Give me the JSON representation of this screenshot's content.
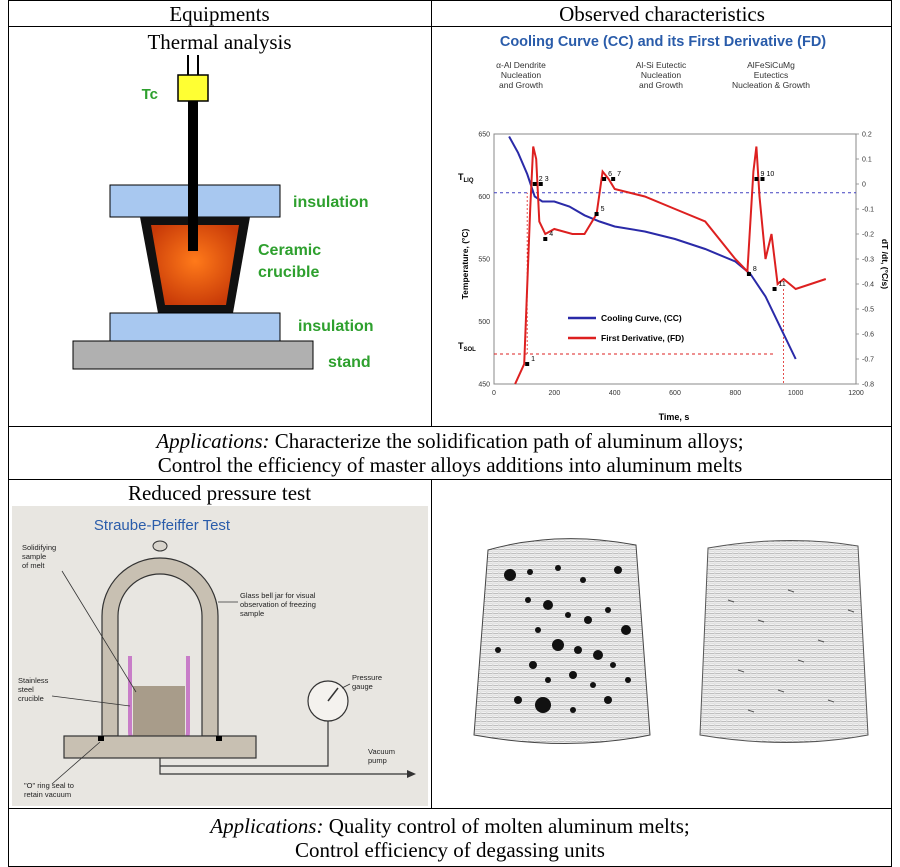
{
  "header": {
    "col1": "Equipments",
    "col2": "Observed characteristics"
  },
  "thermal": {
    "title": "Thermal analysis",
    "tc_label": "Tc",
    "insulation_top": "insulation",
    "crucible_line1": "Ceramic",
    "crucible_line2": "crucible",
    "insulation_bottom": "insulation",
    "stand": "stand"
  },
  "cooling_chart": {
    "title": "Cooling Curve (CC) and its First Derivative (FD)",
    "annotations": [
      {
        "line1": "α-Al Dendrite",
        "line2": "Nucleation",
        "line3": "and Growth"
      },
      {
        "line1": "Al-Si Eutectic",
        "line2": "Nucleation",
        "line3": "and Growth"
      },
      {
        "line1": "AlFeSiCuMg",
        "line2": "Eutectics",
        "line3": "Nucleation & Growth"
      }
    ],
    "t_liq": "T",
    "t_liq_sub": "LIQ",
    "t_sol": "T",
    "t_sol_sub": "SOL",
    "ylabel_left": "Temperature, (°C)",
    "ylabel_right": "dT /dt, (°C/s)",
    "xlabel": "Time, s",
    "legend_cc": "Cooling Curve, (CC)",
    "legend_fd": "First Derivative, (FD)",
    "point_labels": [
      "1",
      "2",
      "3",
      "4",
      "5",
      "6",
      "7",
      "8",
      "9",
      "10",
      "11"
    ]
  },
  "chart_data": {
    "type": "line",
    "title": "Cooling Curve (CC) and its First Derivative (FD)",
    "xlabel": "Time, s",
    "ylabel": "Temperature, (°C)",
    "y2label": "dT /dt, (°C/s)",
    "xlim": [
      0,
      1200
    ],
    "ylim": [
      450,
      650
    ],
    "y2lim": [
      -0.8,
      0.2
    ],
    "x_ticks": [
      "0",
      "200",
      "400",
      "600",
      "800",
      "1000",
      "1200"
    ],
    "y_ticks": [
      "450",
      "500",
      "550",
      "600",
      "650"
    ],
    "y2_ticks": [
      "0.2",
      "0.1",
      "0",
      "-0.1",
      "-0.2",
      "-0.3",
      "-0.4",
      "-0.5",
      "-0.6",
      "-0.7",
      "-0.8"
    ],
    "t_liq_c": 603,
    "t_sol_c": 474,
    "legend": "bottom-center",
    "series": [
      {
        "name": "Cooling Curve, (CC)",
        "axis": "left",
        "color": "#2a2aa8",
        "x": [
          50,
          80,
          110,
          135,
          160,
          200,
          250,
          300,
          350,
          400,
          500,
          600,
          700,
          800,
          850,
          900,
          950,
          1000
        ],
        "y": [
          648,
          635,
          618,
          600,
          596,
          596,
          592,
          585,
          580,
          576,
          572,
          566,
          558,
          548,
          538,
          520,
          495,
          470
        ]
      },
      {
        "name": "First Derivative, (FD)",
        "axis": "right",
        "color": "#dd2020",
        "x": [
          70,
          100,
          120,
          130,
          140,
          150,
          170,
          200,
          260,
          300,
          340,
          360,
          380,
          400,
          500,
          600,
          700,
          800,
          840,
          860,
          870,
          880,
          900,
          920,
          940,
          960,
          1000,
          1050,
          1100
        ],
        "y": [
          -0.8,
          -0.72,
          -0.1,
          0.15,
          0.1,
          -0.15,
          -0.2,
          -0.18,
          -0.2,
          -0.2,
          -0.12,
          0.05,
          0.02,
          -0.02,
          -0.05,
          -0.1,
          -0.15,
          -0.3,
          -0.35,
          0.05,
          0.15,
          -0.05,
          -0.3,
          -0.2,
          -0.4,
          -0.38,
          -0.42,
          -0.4,
          -0.38
        ]
      }
    ]
  },
  "applications1": {
    "label": "Applications:",
    "line1_rest": " Characterize the solidification path of aluminum alloys;",
    "line2": "Control the efficiency of master alloys additions into aluminum melts"
  },
  "reduced": {
    "title": "Reduced pressure test",
    "diagram_title": "Straube-Pfeiffer Test",
    "sample_label": [
      "Solidifying",
      "sample",
      "of melt"
    ],
    "bell_label": [
      "Glass bell jar for visual",
      "observation of freezing",
      "sample"
    ],
    "crucible_label": [
      "Stainless",
      "steel",
      "crucible"
    ],
    "gauge_label": [
      "Pressure",
      "gauge"
    ],
    "pump_label": [
      "Vacuum",
      "pump"
    ],
    "oring_label": [
      "\"O\" ring seal to",
      "retain vacuum"
    ]
  },
  "applications2": {
    "label": "Applications:",
    "line1_rest": " Quality control of molten aluminum melts;",
    "line2": "Control efficiency of degassing units"
  },
  "colors": {
    "insulation": "#a8c8f0",
    "stand": "#b0b0b0",
    "tc": "#ffff33",
    "label_green": "#2ea02e",
    "chart_title": "#2a5caa",
    "cc_line": "#2a2aa8",
    "fd_line": "#dd2020"
  }
}
